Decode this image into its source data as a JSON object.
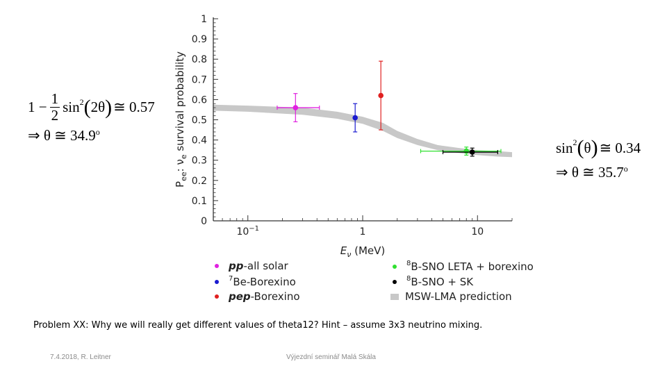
{
  "left_formula": {
    "line1_prefix": "1 −",
    "frac_num": "1",
    "frac_den": "2",
    "func": "sin",
    "exp": "2",
    "arg": "2θ",
    "approx": "≅ 0.57",
    "line2_implies": "⇒",
    "line2_text": "θ ≅ 34.9",
    "line2_deg": "o"
  },
  "right_formula": {
    "func": "sin",
    "exp": "2",
    "arg": "θ",
    "approx": "≅ 0.34",
    "line2_implies": "⇒",
    "line2_text": "θ ≅ 35.7",
    "line2_deg": "o"
  },
  "chart_data": {
    "type": "scatter",
    "x_scale": "log",
    "xlim": [
      0.05,
      20
    ],
    "ylim": [
      0,
      1
    ],
    "x_ticks": [
      {
        "value": 0.1,
        "base": "10",
        "exp": "−1"
      },
      {
        "value": 1,
        "label": "1"
      },
      {
        "value": 10,
        "label": "10"
      }
    ],
    "y_ticks": [
      "0",
      "0.1",
      "0.2",
      "0.3",
      "0.4",
      "0.5",
      "0.6",
      "0.7",
      "0.8",
      "0.9",
      "1"
    ],
    "ylabel_prefix": "P",
    "ylabel_sub": "ee",
    "ylabel_rest": ": ν",
    "ylabel_sub2": "e",
    "ylabel_tail": " survival probability",
    "xlabel_var": "E",
    "xlabel_sub": "ν",
    "xlabel_unit": " (MeV)",
    "band": {
      "name": "MSW-LMA prediction",
      "color": "#c8c8c8",
      "x": [
        0.05,
        0.1,
        0.3,
        0.6,
        1.0,
        1.5,
        2.0,
        3.0,
        4.5,
        7.0,
        10.0,
        15.0,
        20.0
      ],
      "y_low": [
        0.545,
        0.54,
        0.525,
        0.505,
        0.48,
        0.445,
        0.41,
        0.375,
        0.35,
        0.335,
        0.325,
        0.318,
        0.315
      ],
      "y_high": [
        0.575,
        0.57,
        0.56,
        0.54,
        0.515,
        0.485,
        0.445,
        0.405,
        0.375,
        0.36,
        0.35,
        0.345,
        0.34
      ]
    },
    "points": [
      {
        "name": "pp-all solar",
        "color": "#e020e0",
        "x": 0.26,
        "y": 0.56,
        "x_lo": 0.18,
        "x_hi": 0.42,
        "y_lo": 0.49,
        "y_hi": 0.63
      },
      {
        "name": "7Be-Borexino",
        "color": "#1a1ad0",
        "x": 0.86,
        "y": 0.51,
        "x_lo": 0.86,
        "x_hi": 0.86,
        "y_lo": 0.44,
        "y_hi": 0.58
      },
      {
        "name": "pep-Borexino",
        "color": "#e02020",
        "x": 1.44,
        "y": 0.62,
        "x_lo": 1.44,
        "x_hi": 1.44,
        "y_lo": 0.45,
        "y_hi": 0.79
      },
      {
        "name": "8B-SNO LETA + borexino",
        "color": "#30e030",
        "x": 8.0,
        "y": 0.345,
        "x_lo": 3.2,
        "x_hi": 16.0,
        "y_lo": 0.325,
        "y_hi": 0.365
      },
      {
        "name": "8B-SNO + SK",
        "color": "#000000",
        "x": 9.0,
        "y": 0.34,
        "x_lo": 5.0,
        "x_hi": 15.0,
        "y_lo": 0.32,
        "y_hi": 0.36
      }
    ],
    "legend": [
      {
        "id": "pp",
        "sup": "",
        "italic": "pp",
        "text": "-all solar",
        "color": "#e020e0",
        "marker": "dot"
      },
      {
        "id": "be7",
        "sup": "7",
        "italic": "",
        "text": "Be-Borexino",
        "color": "#1a1ad0",
        "marker": "dot"
      },
      {
        "id": "pep",
        "sup": "",
        "italic": "pep",
        "text": "-Borexino",
        "color": "#e02020",
        "marker": "dot"
      },
      {
        "id": "b8leta",
        "sup": "8",
        "italic": "",
        "text": "B-SNO LETA + borexino",
        "color": "#30e030",
        "marker": "dot"
      },
      {
        "id": "b8sk",
        "sup": "8",
        "italic": "",
        "text": "B-SNO + SK",
        "color": "#000000",
        "marker": "dot"
      },
      {
        "id": "msw",
        "sup": "",
        "italic": "",
        "text": "MSW-LMA prediction",
        "color": "#c8c8c8",
        "marker": "rect"
      }
    ]
  },
  "note": "Problem XX: Why we will really get different values of theta12? Hint – assume 3x3 neutrino mixing.",
  "footer": {
    "left": "7.4.2018, R. Leitner",
    "center": "Výjezdní seminář Malá Skála"
  }
}
